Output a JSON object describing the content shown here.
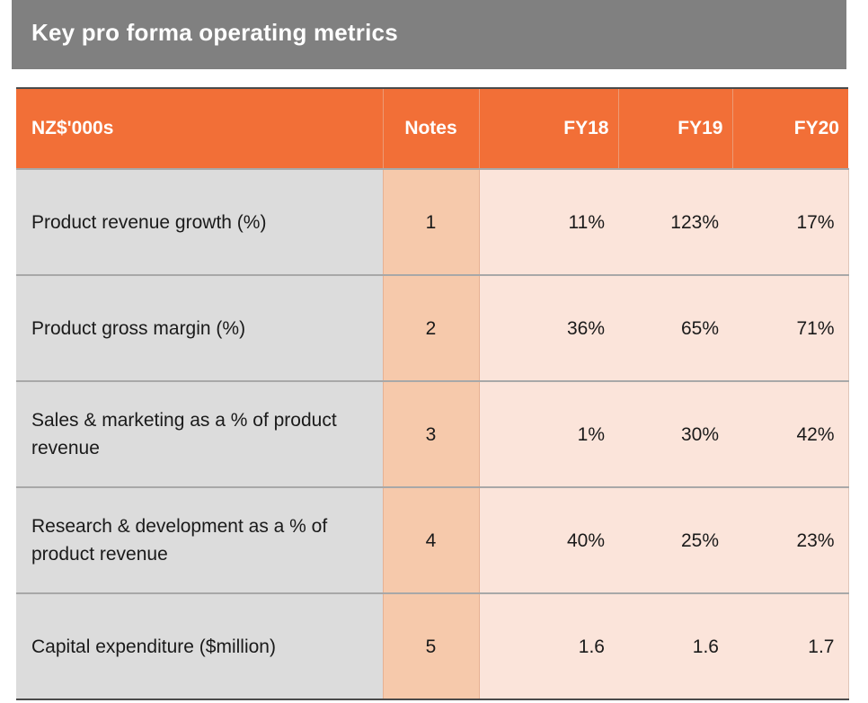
{
  "title": "Key pro forma operating metrics",
  "table": {
    "headers": [
      "NZ$'000s",
      "Notes",
      "FY18",
      "FY19",
      "FY20"
    ],
    "rows": [
      {
        "label": "Product revenue growth (%)",
        "note": "1",
        "fy18": "11%",
        "fy19": "123%",
        "fy20": "17%"
      },
      {
        "label": "Product gross margin (%)",
        "note": "2",
        "fy18": "36%",
        "fy19": "65%",
        "fy20": "71%"
      },
      {
        "label": "Sales & marketing as a % of product revenue",
        "note": "3",
        "fy18": "1%",
        "fy19": "30%",
        "fy20": "42%"
      },
      {
        "label": "Research & development as a % of product revenue",
        "note": "4",
        "fy18": "40%",
        "fy19": "25%",
        "fy20": "23%"
      },
      {
        "label": "Capital expenditure  ($million)",
        "note": "5",
        "fy18": "1.6",
        "fy19": "1.6",
        "fy20": "1.7"
      }
    ]
  },
  "colors": {
    "title_bar": "#808080",
    "header": "#f26f37",
    "label_column": "#dcdcdc",
    "notes_column": "#f6c9ab",
    "value_columns": "#fbe4da"
  }
}
